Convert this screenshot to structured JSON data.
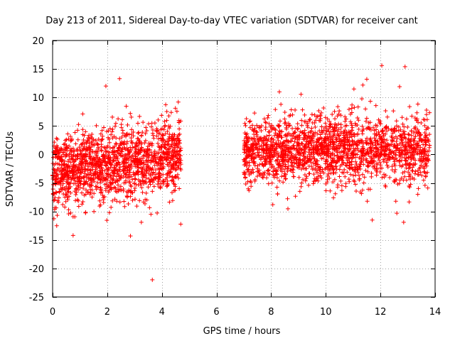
{
  "chart_data": {
    "type": "scatter",
    "title": "Day 213 of 2011, Sidereal Day-to-day VTEC variation (SDTVAR) for receiver cant",
    "xlabel": "GPS time / hours",
    "ylabel": "SDTVAR / TECUs",
    "xlim": [
      0,
      14
    ],
    "ylim": [
      -25,
      20
    ],
    "xticks": [
      0,
      2,
      4,
      6,
      8,
      10,
      12,
      14
    ],
    "yticks": [
      -25,
      -20,
      -15,
      -10,
      -5,
      0,
      5,
      10,
      15,
      20
    ],
    "grid": true,
    "marker": "+",
    "series": [
      {
        "name": "SDTVAR",
        "color": "#ff0000",
        "clusters": [
          {
            "x_range": [
              0.0,
              4.7
            ],
            "mean_start": -3.0,
            "mean_end": -0.5,
            "spread": 3.2,
            "count": 1500
          },
          {
            "x_range": [
              7.0,
              13.8
            ],
            "mean_start": 0.5,
            "mean_end": 1.0,
            "spread": 3.0,
            "count": 1900
          }
        ],
        "outliers": [
          {
            "x": 2.45,
            "y": 13.3
          },
          {
            "x": 1.95,
            "y": 12.0
          },
          {
            "x": 3.65,
            "y": -22.0
          },
          {
            "x": 2.85,
            "y": -14.3
          },
          {
            "x": 0.75,
            "y": -14.2
          },
          {
            "x": 12.05,
            "y": 15.6
          },
          {
            "x": 12.9,
            "y": 15.4
          },
          {
            "x": 11.5,
            "y": 13.2
          },
          {
            "x": 8.3,
            "y": 11.0
          },
          {
            "x": 11.7,
            "y": -11.5
          },
          {
            "x": 12.85,
            "y": -11.9
          },
          {
            "x": 12.6,
            "y": -10.3
          },
          {
            "x": 4.6,
            "y": 9.2
          },
          {
            "x": 3.6,
            "y": -10.5
          },
          {
            "x": 12.7,
            "y": 11.9
          },
          {
            "x": 0.15,
            "y": -12.5
          }
        ]
      }
    ]
  }
}
